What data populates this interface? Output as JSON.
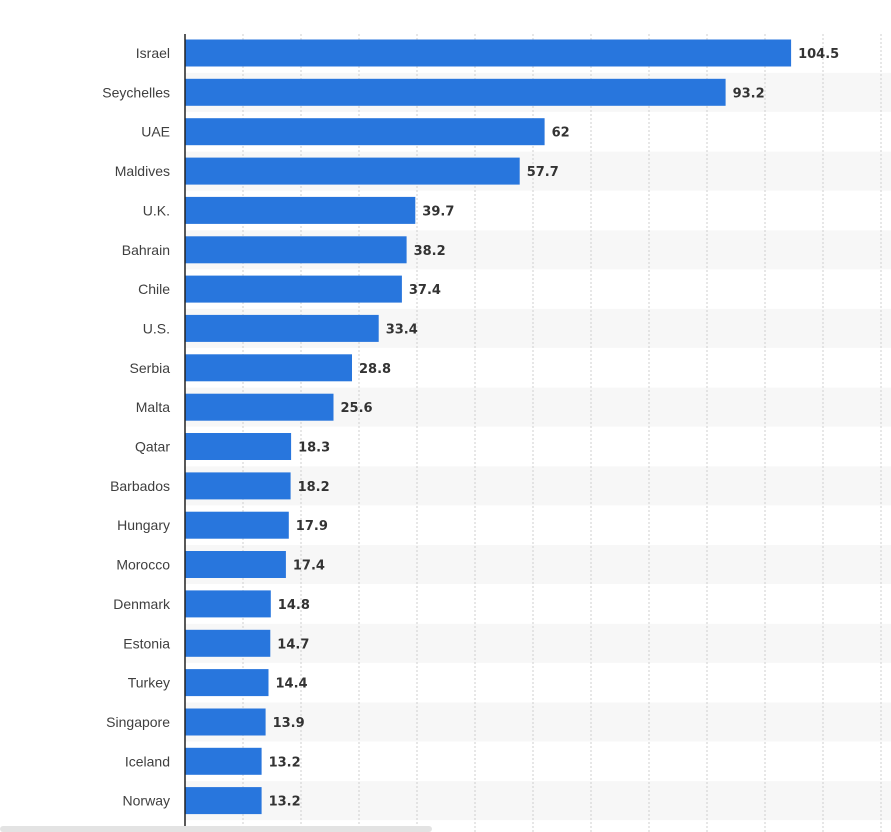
{
  "chart_data": {
    "type": "bar",
    "orientation": "horizontal",
    "categories": [
      "Israel",
      "Seychelles",
      "UAE",
      "Maldives",
      "U.K.",
      "Bahrain",
      "Chile",
      "U.S.",
      "Serbia",
      "Malta",
      "Qatar",
      "Barbados",
      "Hungary",
      "Morocco",
      "Denmark",
      "Estonia",
      "Turkey",
      "Singapore",
      "Iceland",
      "Norway"
    ],
    "values": [
      104.5,
      93.2,
      62,
      57.7,
      39.7,
      38.2,
      37.4,
      33.4,
      28.8,
      25.6,
      18.3,
      18.2,
      17.9,
      17.4,
      14.8,
      14.7,
      14.4,
      13.9,
      13.2,
      13.2
    ],
    "value_labels": [
      "104.5",
      "93.2",
      "62",
      "57.7",
      "39.7",
      "38.2",
      "37.4",
      "33.4",
      "28.8",
      "25.6",
      "18.3",
      "18.2",
      "17.9",
      "17.4",
      "14.8",
      "14.7",
      "14.4",
      "13.9",
      "13.2",
      "13.2"
    ],
    "xlim": [
      0,
      120
    ],
    "grid": true,
    "title": "",
    "xlabel": "",
    "ylabel": "",
    "colors": {
      "bar": "#2876dd",
      "stripe": "#f7f7f7",
      "grid": "#cfcfcf",
      "axis": "#222222",
      "label": "#3f3f3f",
      "value": "#333333"
    }
  }
}
